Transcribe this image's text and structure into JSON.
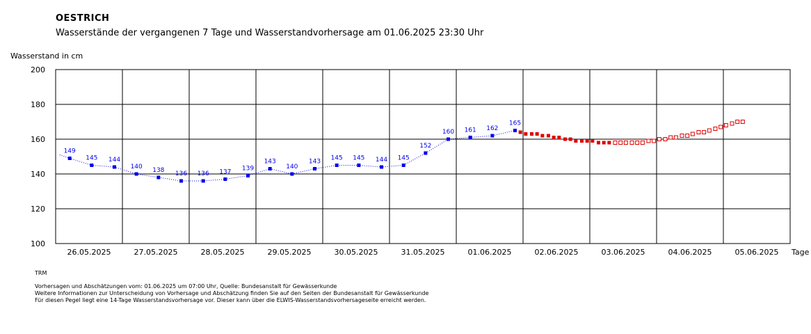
{
  "header": {
    "title": "OESTRICH",
    "subtitle": "Wasserstände der vergangenen 7 Tage und Wasserstandvorhersage am 01.06.2025 23:30 Uhr"
  },
  "chart_data": {
    "type": "scatter",
    "title": "Wasserstände der vergangenen 7 Tage und Wasserstandvorhersage am 01.06.2025 23:30 Uhr",
    "ylabel": "Wasserstand in cm",
    "xlabel": "Tage",
    "ylim": [
      100,
      200
    ],
    "yticks": [
      100,
      120,
      140,
      160,
      180,
      200
    ],
    "x_days": [
      "26.05.2025",
      "27.05.2025",
      "28.05.2025",
      "29.05.2025",
      "30.05.2025",
      "31.05.2025",
      "01.06.2025",
      "02.06.2025",
      "03.06.2025",
      "04.06.2025",
      "05.06.2025"
    ],
    "x_range_days": [
      25.5,
      36.5
    ],
    "grid": true,
    "colors": {
      "measured": "#0000ee",
      "forecast": "#dd0000"
    },
    "series": [
      {
        "name": "",
        "style": "measured",
        "points": [
          [
            25.71,
            149
          ],
          [
            26.04,
            145
          ],
          [
            26.38,
            144
          ],
          [
            26.71,
            140
          ],
          [
            27.04,
            138
          ],
          [
            27.38,
            136
          ],
          [
            27.71,
            136
          ],
          [
            28.04,
            137
          ],
          [
            28.38,
            139
          ],
          [
            28.71,
            143
          ],
          [
            29.04,
            140
          ],
          [
            29.38,
            143
          ],
          [
            29.71,
            145
          ],
          [
            30.04,
            145
          ],
          [
            30.38,
            144
          ],
          [
            30.71,
            145
          ],
          [
            31.04,
            152
          ],
          [
            31.38,
            160
          ],
          [
            31.71,
            161
          ],
          [
            32.04,
            162
          ],
          [
            32.38,
            165
          ]
        ],
        "labeled": true
      },
      {
        "name": "",
        "style": "forecast-filled",
        "points": [
          [
            32.46,
            164
          ],
          [
            32.54,
            163
          ],
          [
            32.63,
            163
          ],
          [
            32.71,
            163
          ],
          [
            32.79,
            162
          ],
          [
            32.88,
            162
          ],
          [
            32.96,
            161
          ],
          [
            33.04,
            161
          ],
          [
            33.13,
            160
          ],
          [
            33.21,
            160
          ],
          [
            33.29,
            159
          ],
          [
            33.38,
            159
          ],
          [
            33.46,
            159
          ],
          [
            33.54,
            159
          ],
          [
            33.63,
            158
          ],
          [
            33.71,
            158
          ],
          [
            33.79,
            158
          ]
        ],
        "labeled": false
      },
      {
        "name": "",
        "style": "forecast-open",
        "points": [
          [
            33.88,
            158
          ],
          [
            33.96,
            158
          ],
          [
            34.04,
            158
          ],
          [
            34.13,
            158
          ],
          [
            34.21,
            158
          ],
          [
            34.29,
            158
          ],
          [
            34.38,
            159
          ],
          [
            34.46,
            159
          ],
          [
            34.54,
            160
          ],
          [
            34.63,
            160
          ],
          [
            34.71,
            161
          ],
          [
            34.79,
            161
          ],
          [
            34.88,
            162
          ],
          [
            34.96,
            162
          ],
          [
            35.04,
            163
          ],
          [
            35.13,
            164
          ],
          [
            35.21,
            164
          ],
          [
            35.29,
            165
          ],
          [
            35.38,
            166
          ],
          [
            35.46,
            167
          ],
          [
            35.54,
            168
          ],
          [
            35.63,
            169
          ],
          [
            35.71,
            170
          ],
          [
            35.79,
            170
          ]
        ],
        "labeled": false
      }
    ]
  },
  "footer": {
    "code": "TRM",
    "line1": "Vorhersagen und Abschätzungen vom: 01.06.2025 um 07:00 Uhr, Quelle: Bundesanstalt für Gewässerkunde",
    "line2": "Weitere Informationen zur Unterscheidung von Vorhersage und Abschätzung finden Sie auf den Seiten der Bundesanstalt für Gewässerkunde",
    "line3": "Für diesen Pegel liegt eine 14-Tage Wasserstandsvorhersage vor. Dieser kann über die ELWIS-Wasserstandsvorhersageseite erreicht werden."
  }
}
